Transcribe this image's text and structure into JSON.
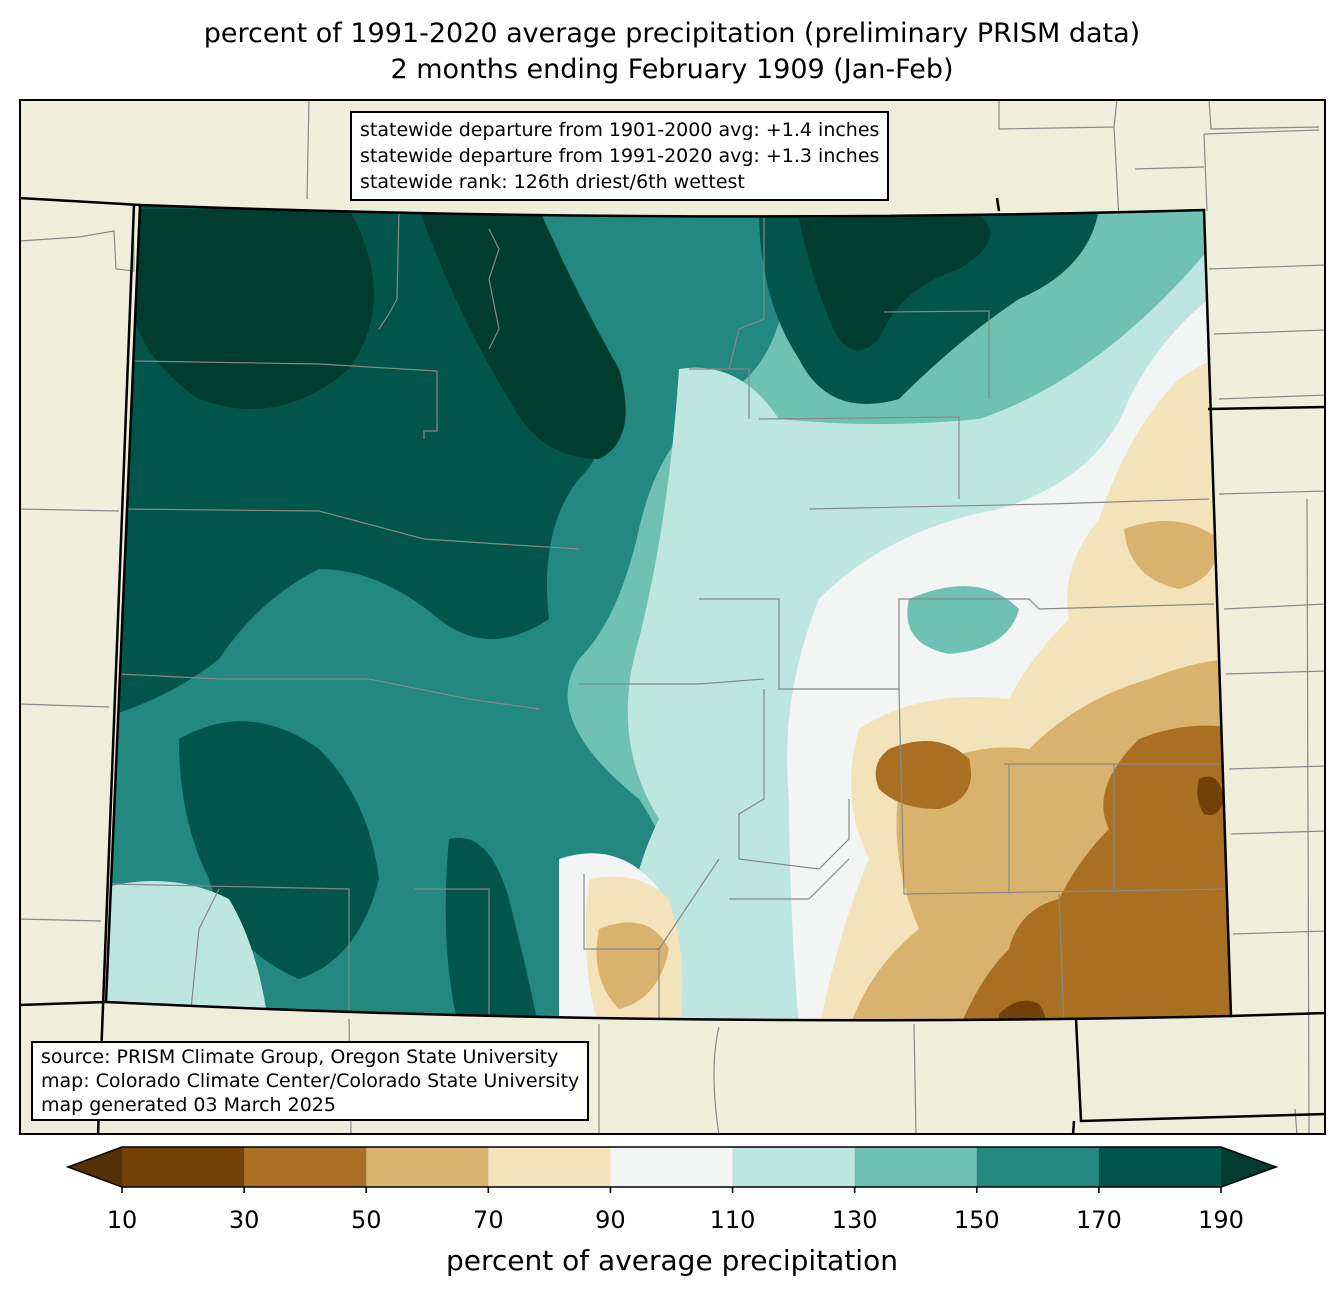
{
  "title": {
    "line1": "percent of 1991-2020 average precipitation (preliminary PRISM data)",
    "line2": "2 months ending February 1909 (Jan-Feb)"
  },
  "stats_box": {
    "line1": "statewide departure from 1901-2000 avg: +1.4 inches",
    "line2": "statewide departure from 1991-2020 avg: +1.3 inches",
    "line3": "statewide rank: 126th driest/6th wettest"
  },
  "source_box": {
    "line1": "source: PRISM Climate Group, Oregon State University",
    "line2": "map: Colorado Climate Center/Colorado State University",
    "line3": "map generated 03 March 2025"
  },
  "colors": {
    "land": "#efeedb",
    "county_line": "#888888",
    "state_line": "#000000",
    "extend_low": "#543005",
    "extend_high": "#003c30",
    "bins": [
      "#734008",
      "#a96f23",
      "#d9b36d",
      "#f3e3bb",
      "#f3f5f4",
      "#bee6e0",
      "#6fc1b3",
      "#228880",
      "#01554b"
    ]
  },
  "chart_data": {
    "type": "heatmap",
    "title": "percent of 1991-2020 average precipitation (preliminary PRISM data) 2 months ending February 1909 (Jan-Feb)",
    "region": "Colorado",
    "legend_placement": "bottom",
    "colorbar": {
      "label": "percent of average precipitation",
      "ticks": [
        "10",
        "30",
        "50",
        "70",
        "90",
        "110",
        "130",
        "150",
        "170",
        "190"
      ],
      "bins": [
        {
          "min": 10,
          "max": 30
        },
        {
          "min": 30,
          "max": 50
        },
        {
          "min": 50,
          "max": 70
        },
        {
          "min": 70,
          "max": 90
        },
        {
          "min": 90,
          "max": 110
        },
        {
          "min": 110,
          "max": 130
        },
        {
          "min": 130,
          "max": 150
        },
        {
          "min": 150,
          "max": 170
        },
        {
          "min": 170,
          "max": 190
        }
      ],
      "extend": "both"
    },
    "pattern_summary": {
      "west_and_mountains": "150-190+ percent (wet)",
      "front_range_plains": "90-130 percent",
      "southeast": "30-70 percent (dry)"
    }
  }
}
